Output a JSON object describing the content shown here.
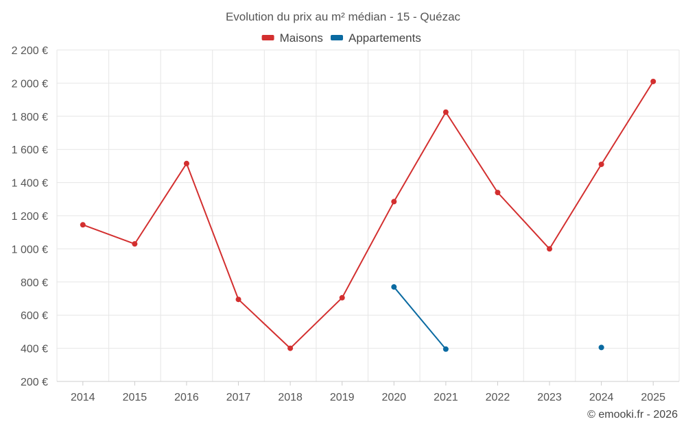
{
  "chart_data": {
    "type": "line",
    "title": "Evolution du prix au m² médian - 15 - Quézac",
    "categories": [
      "2014",
      "2015",
      "2016",
      "2017",
      "2018",
      "2019",
      "2020",
      "2021",
      "2022",
      "2023",
      "2024",
      "2025"
    ],
    "series": [
      {
        "name": "Maisons",
        "color": "#d32f2f",
        "values": [
          1145,
          1030,
          1515,
          695,
          400,
          705,
          1285,
          1825,
          1340,
          1000,
          1510,
          2010
        ]
      },
      {
        "name": "Appartements",
        "color": "#0a6aa1",
        "values": [
          null,
          null,
          null,
          null,
          null,
          null,
          770,
          395,
          null,
          null,
          405,
          null
        ]
      }
    ],
    "ylim": [
      200,
      2200
    ],
    "yticks": [
      200,
      400,
      600,
      800,
      1000,
      1200,
      1400,
      1600,
      1800,
      2000,
      2200
    ],
    "ytick_labels": [
      "200 €",
      "400 €",
      "600 €",
      "800 €",
      "1 000 €",
      "1 200 €",
      "1 400 €",
      "1 600 €",
      "1 800 €",
      "2 000 €",
      "2 200 €"
    ],
    "grid": true,
    "legend": "top-center",
    "xlabel": "",
    "ylabel": ""
  },
  "credit": "© emooki.fr - 2026"
}
